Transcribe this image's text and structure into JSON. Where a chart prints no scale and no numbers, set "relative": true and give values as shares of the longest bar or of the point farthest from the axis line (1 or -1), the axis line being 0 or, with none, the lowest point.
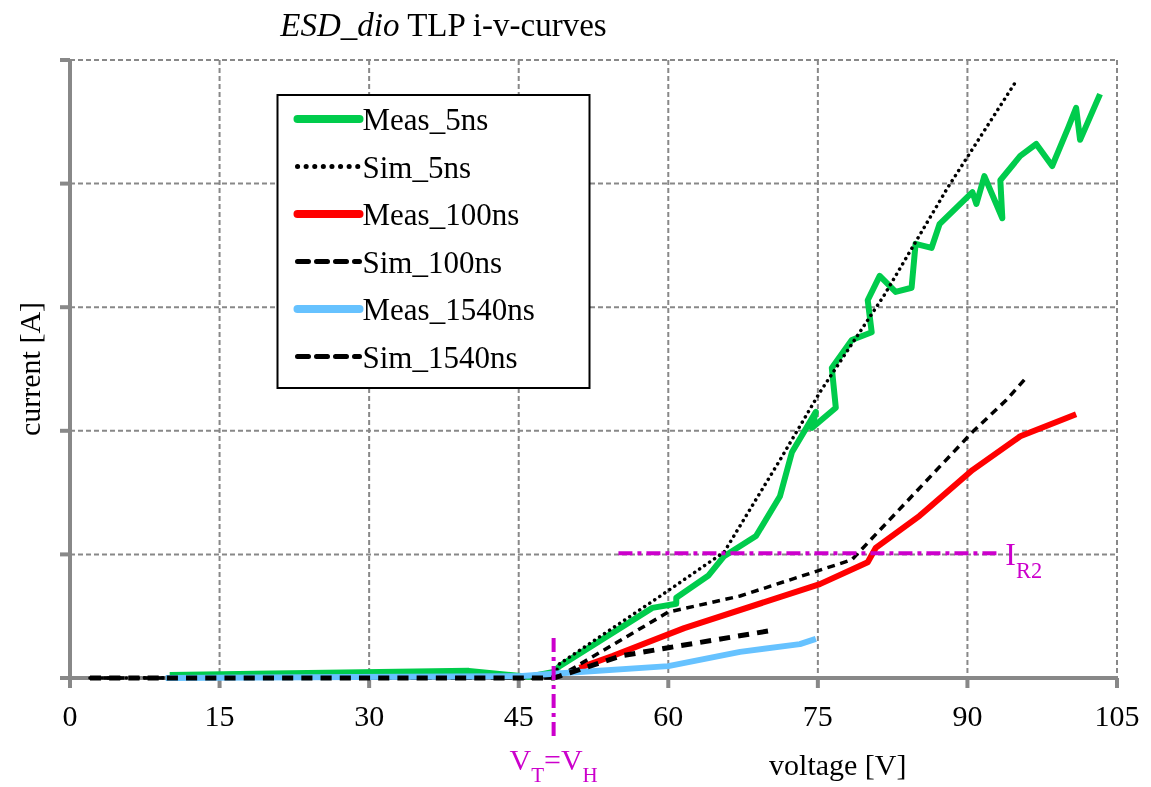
{
  "chart_data": {
    "type": "line",
    "title": "ESD_dio TLP i-v-curves",
    "xlabel": "voltage [V]",
    "ylabel": "current [A]",
    "relative": true,
    "xlim": [
      0,
      105
    ],
    "xticks": [
      0,
      15,
      30,
      45,
      60,
      75,
      90,
      105
    ],
    "grid": true,
    "legend": "top",
    "series": [
      {
        "name": "Meas_5ns",
        "color": "#00cc4c",
        "line_style": "solid",
        "x": [
          10,
          40,
          46,
          48.5,
          49.1,
          58.4,
          60.8,
          60.8,
          64.0,
          65.6,
          68.8,
          71.2,
          72.4,
          74.8,
          74.4,
          76.8,
          76.4,
          78.4,
          80.4,
          80.0,
          81.2,
          82.8,
          84.4,
          84.8,
          86.4,
          87.2,
          90.5,
          90.9,
          91.7,
          93.5,
          93.3,
          95.3,
          96.9,
          98.5,
          100.1,
          100.9,
          101.3,
          103.3
        ],
        "values": [
          0.005,
          0.012,
          0.002,
          0.01,
          0.02,
          0.118,
          0.125,
          0.135,
          0.172,
          0.205,
          0.239,
          0.306,
          0.38,
          0.448,
          0.421,
          0.455,
          0.522,
          0.569,
          0.582,
          0.636,
          0.677,
          0.65,
          0.657,
          0.731,
          0.724,
          0.764,
          0.818,
          0.798,
          0.845,
          0.774,
          0.838,
          0.879,
          0.899,
          0.862,
          0.926,
          0.96,
          0.906,
          0.983
        ]
      },
      {
        "name": "Sim_5ns",
        "color": "#000000",
        "line_style": "dotted",
        "x": [
          2,
          48.5,
          49.1,
          59.2,
          65.6,
          71.2,
          75.2,
          81.6,
          88.0,
          94.7
        ],
        "values": [
          0,
          0.002,
          0.024,
          0.138,
          0.212,
          0.367,
          0.481,
          0.643,
          0.825,
          1
        ]
      },
      {
        "name": "Meas_100ns",
        "color": "#ff0000",
        "line_style": "solid",
        "x": [
          51.1,
          54.4,
          61.6,
          75.2,
          80.0,
          80.8,
          85.2,
          90.5,
          95.3,
          100.9
        ],
        "values": [
          0.017,
          0.037,
          0.084,
          0.158,
          0.195,
          0.219,
          0.273,
          0.35,
          0.407,
          0.444
        ]
      },
      {
        "name": "Sim_100ns",
        "color": "#000000",
        "line_style": "dashed",
        "x": [
          2,
          48.5,
          49.1,
          60.0,
          67.2,
          78.4,
          90.5,
          93.9,
          95.7
        ],
        "values": [
          0,
          0,
          0.003,
          0.111,
          0.138,
          0.199,
          0.414,
          0.468,
          0.502
        ]
      },
      {
        "name": "Meas_1540ns",
        "color": "#66c2ff",
        "line_style": "solid",
        "x": [
          9.6,
          45,
          48.5,
          60.0,
          67.2,
          73.2,
          74.8
        ],
        "values": [
          0,
          0.003,
          0.007,
          0.02,
          0.044,
          0.057,
          0.066
        ]
      },
      {
        "name": "Sim_1540ns",
        "color": "#000000",
        "line_style": "dashed",
        "x": [
          2,
          48.5,
          49.1,
          55.2,
          60.0,
          70.0
        ],
        "values": [
          0,
          0,
          0.003,
          0.037,
          0.051,
          0.079
        ]
      }
    ],
    "ref_lines": [
      {
        "axis": "x",
        "value": 48.5,
        "label": "V$_{T}$=V$_{H}$",
        "color": "#cc00cc",
        "line_style": "dashed"
      },
      {
        "axis": "y",
        "value": 0.21,
        "label": "I$_{R2}$",
        "color": "#cc00cc",
        "line_style": "dashed"
      }
    ]
  }
}
